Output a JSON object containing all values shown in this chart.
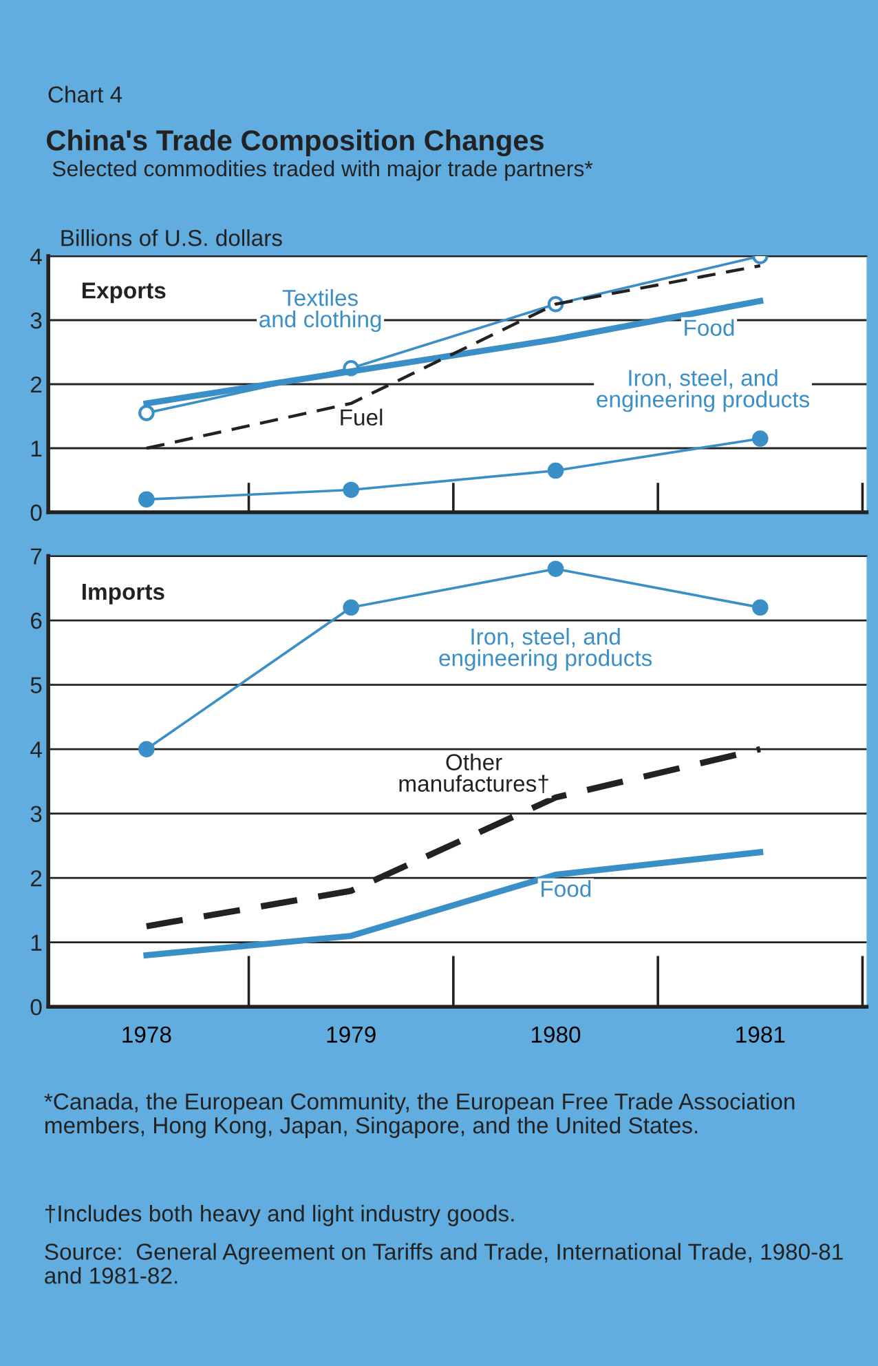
{
  "chart_data": [
    {
      "type": "line",
      "title": "China's Trade Composition Changes",
      "subtitle": "Selected commodities traded with major trade partners*",
      "ylabel": "Billions of U.S. dollars",
      "annotations": [
        "Chart 4",
        "Exports"
      ],
      "categories": [
        "1978",
        "1979",
        "1980",
        "1981"
      ],
      "ylim": [
        0,
        4
      ],
      "yticks": [
        0,
        1,
        2,
        3,
        4
      ],
      "grid": "y",
      "tick_labels": "y",
      "series": [
        {
          "name": "Textiles\nand clothing",
          "color": "#3a8fc6",
          "values": [
            1.55,
            2.25,
            3.25,
            4.0
          ],
          "marker": "circle"
        },
        {
          "name": "Food",
          "color": "#3a8fc6",
          "values": [
            1.7,
            2.2,
            2.7,
            3.3
          ],
          "marker": "none"
        },
        {
          "name": "Fuel",
          "color": "#222222",
          "values": [
            1.0,
            1.7,
            3.25,
            3.85
          ],
          "marker": "none",
          "line_style": "dashed"
        },
        {
          "name": "Iron, steel, and\nengineering products",
          "color": "#3a8fc6",
          "values": [
            0.2,
            0.35,
            0.65,
            1.15
          ],
          "marker": "circle"
        }
      ]
    },
    {
      "type": "line",
      "annotations": [
        "Imports",
        "*Canada, the European Community, the European Free Trade Association members, Hong Kong, Japan, Singapore, and the United States.",
        "†Includes both heavy and light industry goods.",
        "Source:  General Agreement on Tariffs and Trade, International Trade, 1980-81 and 1981-82."
      ],
      "categories": [
        "1978",
        "1979",
        "1980",
        "1981"
      ],
      "ylim": [
        0,
        7
      ],
      "yticks": [
        0,
        1,
        2,
        3,
        4,
        5,
        6,
        7
      ],
      "grid": "y",
      "series": [
        {
          "name": "Iron, steel, and\nengineering products",
          "color": "#3a8fc6",
          "values": [
            4.0,
            6.2,
            6.8,
            6.2
          ],
          "marker": "circle"
        },
        {
          "name": "Other\nmanufactures†",
          "color": "#222222",
          "values": [
            1.25,
            1.8,
            3.25,
            4.0
          ],
          "marker": "none",
          "line_style": "dashed"
        },
        {
          "name": "Food",
          "color": "#3a8fc6",
          "values": [
            0.8,
            1.1,
            2.05,
            2.4
          ],
          "marker": "none"
        }
      ]
    }
  ]
}
